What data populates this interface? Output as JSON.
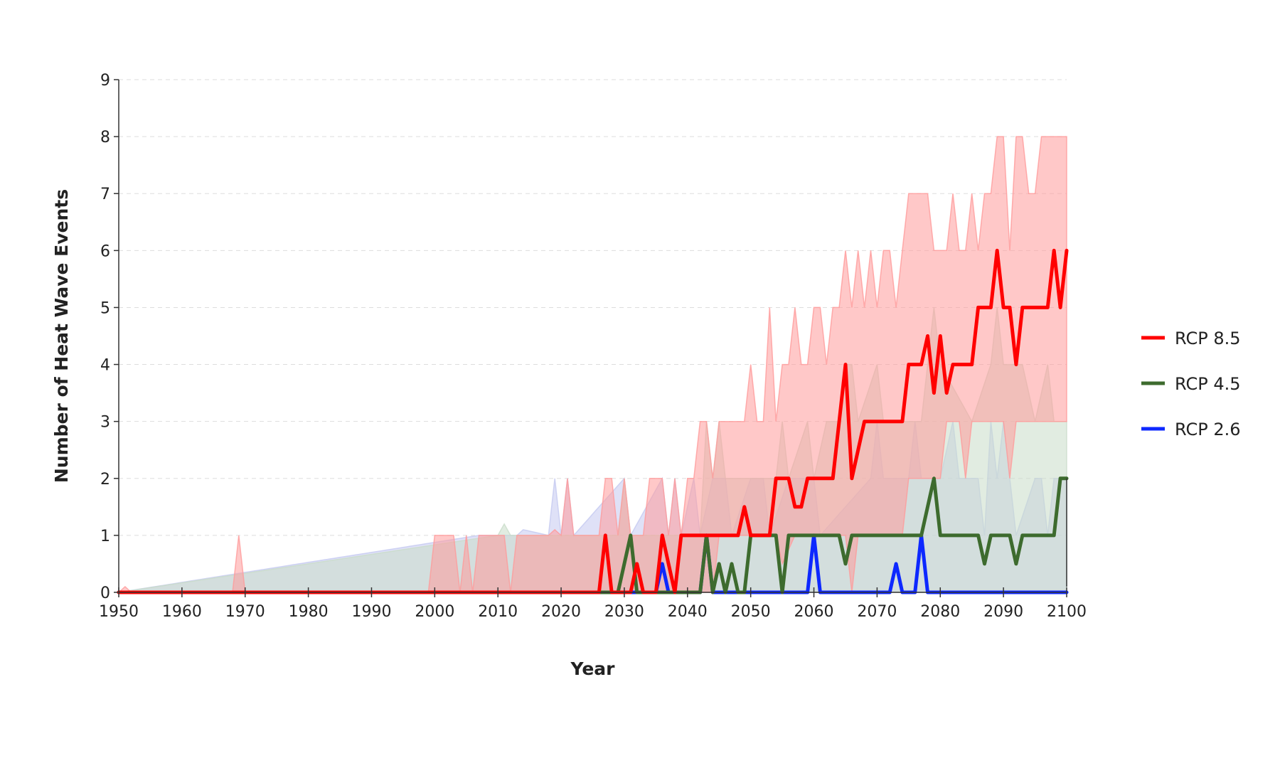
{
  "chart_data": {
    "type": "line",
    "title": "",
    "xlabel": "Year",
    "ylabel": "Number of Heat Wave Events",
    "xlim": [
      1950,
      2100
    ],
    "ylim": [
      0,
      9
    ],
    "xticks": [
      1950,
      1960,
      1970,
      1980,
      1990,
      2000,
      2010,
      2020,
      2030,
      2040,
      2050,
      2060,
      2070,
      2080,
      2090,
      2100
    ],
    "yticks": [
      0,
      1,
      2,
      3,
      4,
      5,
      6,
      7,
      8,
      9
    ],
    "grid": "horizontal dashed",
    "legend_position": "right",
    "series": [
      {
        "name": "RCP 8.5",
        "color": "#ff0000",
        "band_color": "#ff9a9a",
        "median": [
          [
            1950,
            0
          ],
          [
            2026,
            0
          ],
          [
            2027,
            1
          ],
          [
            2028,
            0
          ],
          [
            2031,
            0
          ],
          [
            2032,
            0.5
          ],
          [
            2033,
            0
          ],
          [
            2035,
            0
          ],
          [
            2036,
            1
          ],
          [
            2037,
            0.5
          ],
          [
            2038,
            0
          ],
          [
            2039,
            1
          ],
          [
            2048,
            1
          ],
          [
            2049,
            1.5
          ],
          [
            2050,
            1
          ],
          [
            2053,
            1
          ],
          [
            2054,
            2
          ],
          [
            2056,
            2
          ],
          [
            2057,
            1.5
          ],
          [
            2058,
            1.5
          ],
          [
            2059,
            2
          ],
          [
            2063,
            2
          ],
          [
            2065,
            4
          ],
          [
            2066,
            2
          ],
          [
            2068,
            3
          ],
          [
            2074,
            3
          ],
          [
            2075,
            4
          ],
          [
            2077,
            4
          ],
          [
            2078,
            4.5
          ],
          [
            2079,
            3.5
          ],
          [
            2080,
            4.5
          ],
          [
            2081,
            3.5
          ],
          [
            2082,
            4
          ],
          [
            2085,
            4
          ],
          [
            2086,
            5
          ],
          [
            2088,
            5
          ],
          [
            2089,
            6
          ],
          [
            2090,
            5
          ],
          [
            2091,
            5
          ],
          [
            2092,
            4
          ],
          [
            2093,
            5
          ],
          [
            2097,
            5
          ],
          [
            2098,
            6
          ],
          [
            2099,
            5
          ],
          [
            2100,
            6
          ]
        ],
        "upper": [
          [
            1950,
            0
          ],
          [
            1951,
            0.1
          ],
          [
            1952,
            0
          ],
          [
            1968,
            0
          ],
          [
            1969,
            1
          ],
          [
            1970,
            0
          ],
          [
            1999,
            0
          ],
          [
            2000,
            1
          ],
          [
            2003,
            1
          ],
          [
            2004,
            0
          ],
          [
            2005,
            1
          ],
          [
            2006,
            0
          ],
          [
            2007,
            1
          ],
          [
            2011,
            1
          ],
          [
            2012,
            0
          ],
          [
            2013,
            1
          ],
          [
            2018,
            1
          ],
          [
            2019,
            1.1
          ],
          [
            2020,
            1
          ],
          [
            2021,
            2
          ],
          [
            2022,
            1
          ],
          [
            2023,
            1
          ],
          [
            2026,
            1
          ],
          [
            2027,
            2
          ],
          [
            2028,
            2
          ],
          [
            2029,
            1
          ],
          [
            2030,
            2
          ],
          [
            2031,
            1
          ],
          [
            2033,
            1
          ],
          [
            2034,
            2
          ],
          [
            2036,
            2
          ],
          [
            2037,
            1
          ],
          [
            2038,
            2
          ],
          [
            2039,
            1
          ],
          [
            2040,
            2
          ],
          [
            2041,
            2
          ],
          [
            2042,
            3
          ],
          [
            2043,
            3
          ],
          [
            2044,
            2
          ],
          [
            2045,
            3
          ],
          [
            2049,
            3
          ],
          [
            2050,
            4
          ],
          [
            2051,
            3
          ],
          [
            2052,
            3
          ],
          [
            2053,
            5
          ],
          [
            2054,
            3
          ],
          [
            2055,
            4
          ],
          [
            2056,
            4
          ],
          [
            2057,
            5
          ],
          [
            2058,
            4
          ],
          [
            2059,
            4
          ],
          [
            2060,
            5
          ],
          [
            2061,
            5
          ],
          [
            2062,
            4
          ],
          [
            2063,
            5
          ],
          [
            2064,
            5
          ],
          [
            2065,
            6
          ],
          [
            2066,
            5
          ],
          [
            2067,
            6
          ],
          [
            2068,
            5
          ],
          [
            2069,
            6
          ],
          [
            2070,
            5
          ],
          [
            2071,
            6
          ],
          [
            2072,
            6
          ],
          [
            2073,
            5
          ],
          [
            2074,
            6
          ],
          [
            2075,
            7
          ],
          [
            2077,
            7
          ],
          [
            2078,
            7
          ],
          [
            2079,
            6
          ],
          [
            2080,
            6
          ],
          [
            2081,
            6
          ],
          [
            2082,
            7
          ],
          [
            2083,
            6
          ],
          [
            2084,
            6
          ],
          [
            2085,
            7
          ],
          [
            2086,
            6
          ],
          [
            2087,
            7
          ],
          [
            2088,
            7
          ],
          [
            2089,
            8
          ],
          [
            2090,
            8
          ],
          [
            2091,
            6
          ],
          [
            2092,
            8
          ],
          [
            2093,
            8
          ],
          [
            2094,
            7
          ],
          [
            2095,
            7
          ],
          [
            2096,
            8
          ],
          [
            2097,
            8
          ],
          [
            2098,
            8
          ],
          [
            2099,
            8
          ],
          [
            2100,
            8
          ]
        ],
        "lower": [
          [
            1950,
            0
          ],
          [
            2044,
            0
          ],
          [
            2045,
            1
          ],
          [
            2054,
            1
          ],
          [
            2055,
            0.5
          ],
          [
            2057,
            1
          ],
          [
            2064,
            1
          ],
          [
            2065,
            1
          ],
          [
            2066,
            0
          ],
          [
            2067,
            1
          ],
          [
            2074,
            1
          ],
          [
            2075,
            2
          ],
          [
            2080,
            2
          ],
          [
            2081,
            3
          ],
          [
            2083,
            3
          ],
          [
            2084,
            2
          ],
          [
            2085,
            3
          ],
          [
            2088,
            3
          ],
          [
            2089,
            3
          ],
          [
            2090,
            3
          ],
          [
            2091,
            2
          ],
          [
            2092,
            3
          ],
          [
            2099,
            3
          ],
          [
            2100,
            3
          ]
        ]
      },
      {
        "name": "RCP 4.5",
        "color": "#3d6b2e",
        "band_color": "#c9dcc9",
        "median": [
          [
            1950,
            0
          ],
          [
            2029,
            0
          ],
          [
            2031,
            1
          ],
          [
            2032,
            0
          ],
          [
            2041,
            0
          ],
          [
            2042,
            0
          ],
          [
            2043,
            1
          ],
          [
            2044,
            0
          ],
          [
            2045,
            0.5
          ],
          [
            2046,
            0
          ],
          [
            2047,
            0.5
          ],
          [
            2048,
            0
          ],
          [
            2049,
            0
          ],
          [
            2050,
            1
          ],
          [
            2054,
            1
          ],
          [
            2055,
            0
          ],
          [
            2056,
            1
          ],
          [
            2064,
            1
          ],
          [
            2065,
            0.5
          ],
          [
            2066,
            1
          ],
          [
            2077,
            1
          ],
          [
            2078,
            1.5
          ],
          [
            2079,
            2
          ],
          [
            2080,
            1
          ],
          [
            2086,
            1
          ],
          [
            2087,
            0.5
          ],
          [
            2088,
            1
          ],
          [
            2091,
            1
          ],
          [
            2092,
            0.5
          ],
          [
            2093,
            1
          ],
          [
            2098,
            1
          ],
          [
            2099,
            2
          ],
          [
            2100,
            2
          ]
        ],
        "upper": [
          [
            1950,
            0
          ],
          [
            2010,
            1
          ],
          [
            2011,
            1.2
          ],
          [
            2012,
            1
          ],
          [
            2029,
            1
          ],
          [
            2030,
            2
          ],
          [
            2031,
            1
          ],
          [
            2042,
            1
          ],
          [
            2043,
            3
          ],
          [
            2044,
            2
          ],
          [
            2045,
            3
          ],
          [
            2046,
            2
          ],
          [
            2054,
            2
          ],
          [
            2055,
            3
          ],
          [
            2056,
            2
          ],
          [
            2059,
            3
          ],
          [
            2060,
            2
          ],
          [
            2062,
            3
          ],
          [
            2064,
            3
          ],
          [
            2065,
            4
          ],
          [
            2066,
            4
          ],
          [
            2067,
            3
          ],
          [
            2070,
            4
          ],
          [
            2071,
            3
          ],
          [
            2077,
            3
          ],
          [
            2079,
            5
          ],
          [
            2080,
            4
          ],
          [
            2085,
            3
          ],
          [
            2088,
            4
          ],
          [
            2089,
            5
          ],
          [
            2090,
            4
          ],
          [
            2093,
            4
          ],
          [
            2095,
            3
          ],
          [
            2097,
            4
          ],
          [
            2098,
            3
          ],
          [
            2100,
            3
          ]
        ],
        "lower": [
          [
            1950,
            0
          ],
          [
            2100,
            0
          ]
        ]
      },
      {
        "name": "RCP 2.6",
        "color": "#0d28ff",
        "band_color": "#c4c9f0",
        "median": [
          [
            1950,
            0
          ],
          [
            2035,
            0
          ],
          [
            2036,
            0.5
          ],
          [
            2037,
            0
          ],
          [
            2042,
            0
          ],
          [
            2043,
            1
          ],
          [
            2044,
            0
          ],
          [
            2059,
            0
          ],
          [
            2060,
            1
          ],
          [
            2061,
            0
          ],
          [
            2072,
            0
          ],
          [
            2073,
            0.5
          ],
          [
            2074,
            0
          ],
          [
            2076,
            0
          ],
          [
            2077,
            1
          ],
          [
            2078,
            0
          ],
          [
            2100,
            0
          ]
        ],
        "upper": [
          [
            1950,
            0
          ],
          [
            2007,
            1
          ],
          [
            2013,
            1
          ],
          [
            2014,
            1.1
          ],
          [
            2018,
            1
          ],
          [
            2019,
            2
          ],
          [
            2020,
            1
          ],
          [
            2021,
            2
          ],
          [
            2022,
            1
          ],
          [
            2030,
            2
          ],
          [
            2031,
            1
          ],
          [
            2036,
            2
          ],
          [
            2037,
            1
          ],
          [
            2038,
            2
          ],
          [
            2039,
            1
          ],
          [
            2041,
            2
          ],
          [
            2042,
            1
          ],
          [
            2044,
            2
          ],
          [
            2046,
            2
          ],
          [
            2047,
            1
          ],
          [
            2050,
            2
          ],
          [
            2052,
            2
          ],
          [
            2053,
            1
          ],
          [
            2056,
            2
          ],
          [
            2060,
            2
          ],
          [
            2061,
            1
          ],
          [
            2069,
            2
          ],
          [
            2070,
            3
          ],
          [
            2071,
            2
          ],
          [
            2075,
            2
          ],
          [
            2076,
            3
          ],
          [
            2077,
            2
          ],
          [
            2080,
            2
          ],
          [
            2082,
            3
          ],
          [
            2083,
            2
          ],
          [
            2086,
            2
          ],
          [
            2087,
            1
          ],
          [
            2088,
            3
          ],
          [
            2089,
            2
          ],
          [
            2090,
            3
          ],
          [
            2091,
            2
          ],
          [
            2092,
            1
          ],
          [
            2095,
            2
          ],
          [
            2096,
            2
          ],
          [
            2097,
            1
          ],
          [
            2098,
            2
          ],
          [
            2100,
            2
          ]
        ],
        "lower": [
          [
            1950,
            0
          ],
          [
            2100,
            0
          ]
        ]
      }
    ]
  }
}
